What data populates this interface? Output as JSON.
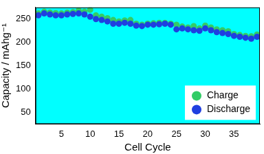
{
  "chart_data": {
    "type": "scatter",
    "x_label": "Cell Cycle",
    "y_label": "Capacity / mAhg⁻¹",
    "x": [
      1,
      2,
      3,
      4,
      5,
      6,
      7,
      8,
      9,
      10,
      11,
      12,
      13,
      14,
      15,
      16,
      17,
      18,
      19,
      20,
      21,
      22,
      23,
      24,
      25,
      26,
      27,
      28,
      29,
      30,
      31,
      32,
      33,
      34,
      35,
      36,
      37,
      38,
      39
    ],
    "series": [
      {
        "name": "Charge",
        "color": "#33cc66",
        "marker": "circle",
        "values": [
          262,
          266,
          264,
          263,
          262,
          264,
          265,
          268,
          266,
          270,
          258,
          255,
          252,
          248,
          245,
          247,
          248,
          240,
          238,
          240,
          241,
          242,
          242,
          240,
          238,
          234,
          232,
          235,
          230,
          236,
          232,
          228,
          226,
          224,
          218,
          216,
          214,
          213,
          217
        ]
      },
      {
        "name": "Discharge",
        "color": "#1f3fe0",
        "marker": "circle",
        "values": [
          258,
          262,
          260,
          258,
          258,
          260,
          261,
          262,
          260,
          255,
          250,
          248,
          245,
          240,
          240,
          242,
          240,
          236,
          235,
          238,
          238,
          239,
          240,
          238,
          228,
          230,
          228,
          226,
          225,
          230,
          226,
          222,
          220,
          218,
          214,
          212,
          210,
          208,
          212
        ]
      }
    ],
    "xlim": [
      0.5,
      39.5
    ],
    "xticks": [
      5,
      10,
      15,
      20,
      25,
      30,
      35
    ],
    "ylim": [
      25,
      275
    ],
    "yticks": [
      50,
      100,
      150,
      200,
      250
    ],
    "grid": false,
    "legend": "lower right"
  }
}
